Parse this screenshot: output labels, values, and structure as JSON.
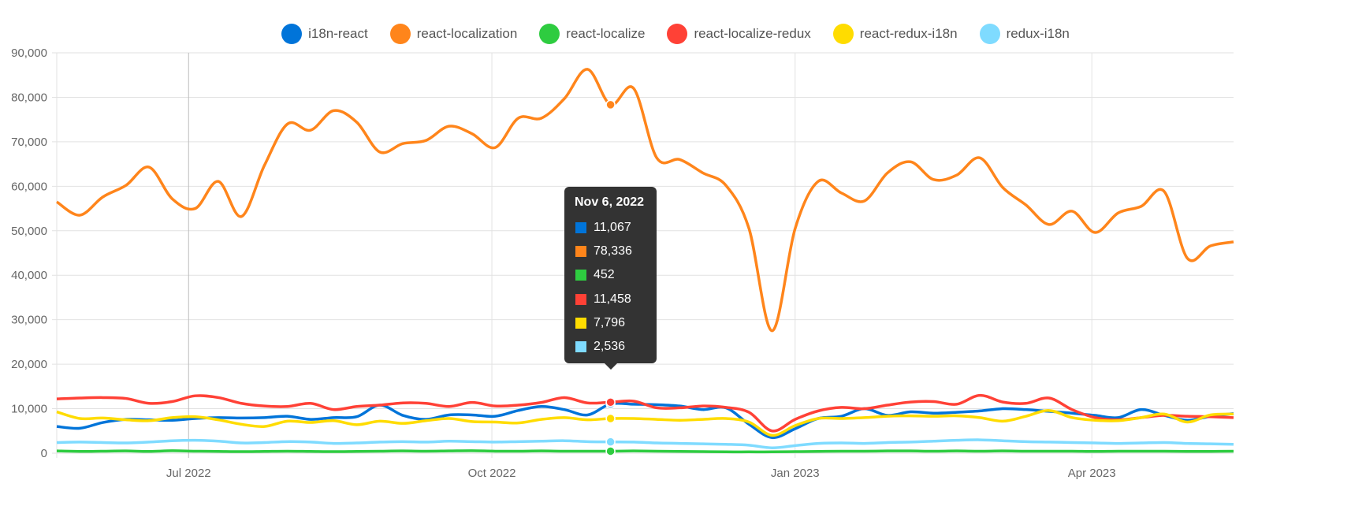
{
  "chart_data": {
    "type": "line",
    "title": "",
    "xlabel": "",
    "ylabel": "",
    "ylim": [
      0,
      90000
    ],
    "y_ticks": [
      "0",
      "10,000",
      "20,000",
      "30,000",
      "40,000",
      "50,000",
      "60,000",
      "70,000",
      "80,000",
      "90,000"
    ],
    "x_ticks": [
      {
        "label": "Jul 2022",
        "date": "2022-07-01"
      },
      {
        "label": "Oct 2022",
        "date": "2022-10-01"
      },
      {
        "label": "Jan 2023",
        "date": "2023-01-01"
      },
      {
        "label": "Apr 2023",
        "date": "2023-04-01"
      }
    ],
    "x_start": "2022-05-22",
    "x_end": "2023-05-14",
    "x_interval": "weekly",
    "grid": true,
    "legend_position": "top",
    "series": [
      {
        "name": "i18n-react",
        "color": "#0074d9",
        "values": [
          6000,
          5600,
          6900,
          7600,
          7500,
          7400,
          7800,
          8000,
          7900,
          8000,
          8300,
          7600,
          8000,
          8200,
          10800,
          8500,
          7600,
          8600,
          8600,
          8300,
          9600,
          10500,
          9800,
          8600,
          11067,
          11000,
          10900,
          10600,
          9800,
          10200,
          6500,
          3500,
          5500,
          7800,
          8300,
          10000,
          8500,
          9300,
          9000,
          9200,
          9500,
          10000,
          9800,
          9400,
          9000,
          8500,
          8000,
          9800,
          8500,
          7400,
          8300,
          8900
        ]
      },
      {
        "name": "react-localization",
        "color": "#ff851b",
        "values": [
          56500,
          53500,
          57600,
          60200,
          64300,
          57200,
          55000,
          61100,
          53200,
          64700,
          74000,
          72600,
          77000,
          74400,
          67700,
          69600,
          70300,
          73500,
          71800,
          68700,
          75300,
          75300,
          79700,
          86300,
          78336,
          82000,
          66400,
          66000,
          63000,
          60200,
          50500,
          27500,
          50500,
          61100,
          58500,
          56700,
          63000,
          65500,
          61500,
          62500,
          66400,
          59700,
          55800,
          51400,
          54400,
          49600,
          54000,
          55500,
          58800,
          43800,
          46600,
          47500
        ]
      },
      {
        "name": "react-localize",
        "color": "#2ecc40",
        "values": [
          500,
          400,
          450,
          500,
          400,
          550,
          450,
          400,
          350,
          400,
          450,
          400,
          350,
          400,
          450,
          500,
          450,
          500,
          550,
          450,
          450,
          500,
          450,
          450,
          452,
          500,
          450,
          400,
          350,
          300,
          300,
          300,
          350,
          400,
          450,
          450,
          500,
          500,
          450,
          500,
          450,
          500,
          450,
          450,
          450,
          400,
          450,
          450,
          450,
          400,
          400,
          450
        ]
      },
      {
        "name": "react-localize-redux",
        "color": "#ff4136",
        "values": [
          12200,
          12400,
          12500,
          12300,
          11200,
          11600,
          12900,
          12500,
          11200,
          10600,
          10500,
          11200,
          9800,
          10500,
          10800,
          11300,
          11200,
          10500,
          11400,
          10600,
          10800,
          11400,
          12500,
          11300,
          11458,
          11700,
          10200,
          10200,
          10600,
          10300,
          9200,
          5000,
          7600,
          9500,
          10300,
          10000,
          10800,
          11500,
          11600,
          11000,
          13000,
          11500,
          11200,
          12400,
          9800,
          8000,
          7500,
          8000,
          8500,
          8300,
          8200,
          8000
        ]
      },
      {
        "name": "react-redux-i18n",
        "color": "#ffdc00",
        "values": [
          9300,
          7800,
          7900,
          7500,
          7300,
          8000,
          8200,
          7500,
          6500,
          6000,
          7200,
          6900,
          7300,
          6400,
          7200,
          6700,
          7300,
          7800,
          7100,
          7000,
          6800,
          7600,
          8000,
          7500,
          7796,
          7800,
          7600,
          7400,
          7600,
          7800,
          7000,
          4000,
          6200,
          7800,
          7800,
          8000,
          8300,
          8400,
          8300,
          8400,
          8000,
          7200,
          8300,
          9600,
          8000,
          7400,
          7300,
          8000,
          8800,
          7000,
          8600,
          8800
        ]
      },
      {
        "name": "redux-i18n",
        "color": "#7fdbff",
        "values": [
          2400,
          2500,
          2400,
          2300,
          2500,
          2800,
          2900,
          2700,
          2300,
          2400,
          2600,
          2500,
          2200,
          2300,
          2500,
          2600,
          2500,
          2700,
          2600,
          2500,
          2600,
          2700,
          2800,
          2600,
          2536,
          2500,
          2300,
          2200,
          2100,
          2000,
          1800,
          1200,
          1700,
          2200,
          2300,
          2200,
          2400,
          2500,
          2700,
          2900,
          3000,
          2800,
          2600,
          2500,
          2400,
          2300,
          2200,
          2300,
          2400,
          2200,
          2100,
          2000
        ]
      }
    ],
    "tooltip": {
      "title": "Nov 6, 2022",
      "values": [
        "11,067",
        "78,336",
        "452",
        "11,458",
        "7,796",
        "2,536"
      ],
      "index": 24
    }
  }
}
